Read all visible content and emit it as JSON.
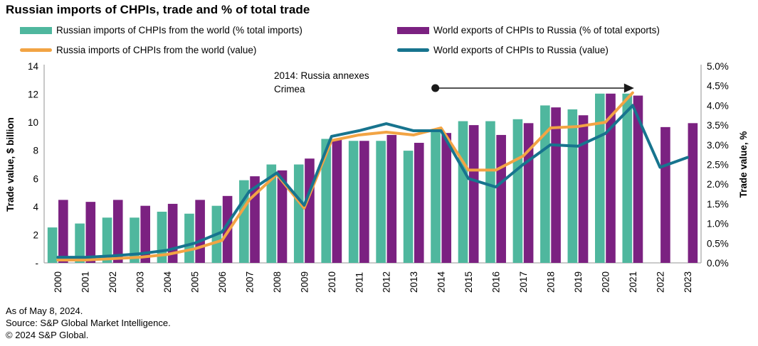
{
  "title": "Russian imports of CHPIs, trade and % of total trade",
  "annotation": {
    "lines": [
      "2014: Russia annexes",
      "Crimea"
    ],
    "arrow": {
      "from_category": "2014",
      "to_category": "2021"
    }
  },
  "footer": {
    "as_of": "As of May 8, 2024.",
    "source": "Source: S&P Global Market Intelligence.",
    "copyright": "© 2024 S&P Global."
  },
  "colors": {
    "green_bar": "#4FB79E",
    "purple_bar": "#7B2181",
    "orange_line": "#F2A444",
    "teal_line": "#17748E",
    "axis": "#ABABAB",
    "arrow": "#1A1A1A"
  },
  "chart_data": {
    "type": "combo_bar_line",
    "categories": [
      "2000",
      "2001",
      "2002",
      "2003",
      "2004",
      "2005",
      "2006",
      "2007",
      "2008",
      "2009",
      "2010",
      "2011",
      "2012",
      "2013",
      "2014",
      "2015",
      "2016",
      "2017",
      "2018",
      "2019",
      "2020",
      "2021",
      "2022",
      "2023"
    ],
    "left_axis": {
      "label": "Trade value, $ billion",
      "min": 0,
      "max": 14,
      "ticks": [
        {
          "v": 14,
          "label": "14"
        },
        {
          "v": 12,
          "label": "12"
        },
        {
          "v": 10,
          "label": "10"
        },
        {
          "v": 8,
          "label": "8"
        },
        {
          "v": 6,
          "label": "6"
        },
        {
          "v": 4,
          "label": "4"
        },
        {
          "v": 2,
          "label": "2"
        },
        {
          "v": 0,
          "label": "-"
        }
      ]
    },
    "right_axis": {
      "label": "Trade value, %",
      "min": 0,
      "max": 5,
      "ticks": [
        {
          "v": 5,
          "label": "5.0%"
        },
        {
          "v": 4.5,
          "label": "4.5%"
        },
        {
          "v": 4,
          "label": "4.0%"
        },
        {
          "v": 3.5,
          "label": "3.5%"
        },
        {
          "v": 3,
          "label": "3.0%"
        },
        {
          "v": 2.5,
          "label": "2.5%"
        },
        {
          "v": 2,
          "label": "2.0%"
        },
        {
          "v": 1.5,
          "label": "1.5%"
        },
        {
          "v": 1,
          "label": "1.0%"
        },
        {
          "v": 0.5,
          "label": "0.5%"
        },
        {
          "v": 0,
          "label": "0.0%"
        }
      ]
    },
    "series": [
      {
        "id": "russian-imports-pct",
        "name": "Russian imports of CHPIs from the world (% total imports)",
        "type": "bar",
        "axis": "right",
        "color": "#4FB79E",
        "values": [
          0.9,
          1.0,
          1.15,
          1.15,
          1.3,
          1.25,
          1.45,
          2.1,
          2.5,
          2.5,
          3.15,
          3.1,
          3.1,
          2.85,
          3.35,
          3.6,
          3.6,
          3.65,
          4.0,
          3.9,
          4.3,
          4.3,
          null,
          null
        ]
      },
      {
        "id": "world-exports-pct",
        "name": "World exports of CHPIs to Russia (% of total exports)",
        "type": "bar",
        "axis": "right",
        "color": "#7B2181",
        "values": [
          1.6,
          1.55,
          1.6,
          1.45,
          1.5,
          1.6,
          1.7,
          2.2,
          2.35,
          2.65,
          3.15,
          3.1,
          3.25,
          3.05,
          3.3,
          3.5,
          3.25,
          3.55,
          3.95,
          3.75,
          4.3,
          4.25,
          3.45,
          3.55
        ]
      },
      {
        "id": "russia-imports-value",
        "name": "Russia imports of CHPIs from the world (value)",
        "type": "line",
        "axis": "left",
        "color": "#F2A444",
        "values": [
          0.2,
          0.2,
          0.3,
          0.4,
          0.6,
          1.0,
          1.6,
          4.5,
          6.3,
          3.9,
          8.7,
          9.1,
          9.3,
          9.1,
          9.6,
          6.6,
          6.6,
          7.6,
          9.6,
          9.7,
          10.0,
          12.1,
          null,
          null
        ]
      },
      {
        "id": "world-exports-value",
        "name": "World exports of CHPIs to Russia (value)",
        "type": "line",
        "axis": "left",
        "color": "#17748E",
        "values": [
          0.4,
          0.4,
          0.5,
          0.65,
          0.9,
          1.4,
          2.2,
          5.1,
          6.4,
          4.1,
          9.0,
          9.4,
          9.9,
          9.4,
          9.4,
          6.0,
          5.4,
          7.0,
          8.4,
          8.3,
          9.2,
          11.2,
          6.8,
          7.5
        ]
      }
    ]
  }
}
